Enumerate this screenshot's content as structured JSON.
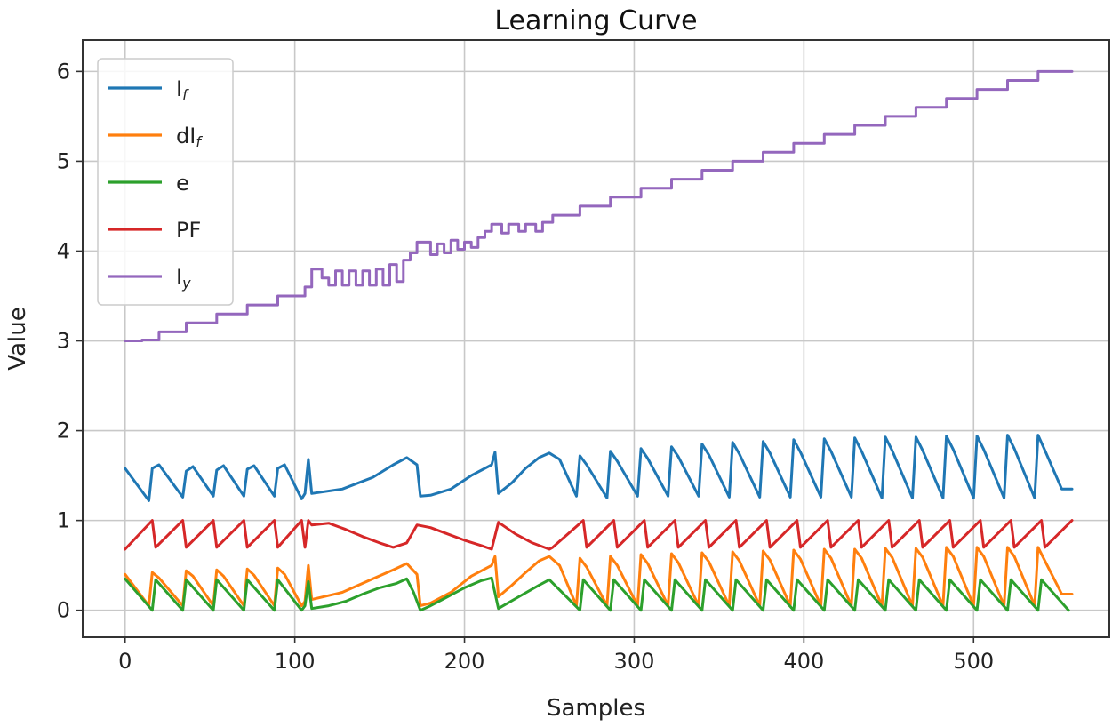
{
  "chart_data": {
    "type": "line",
    "title": "Learning Curve",
    "xlabel": "Samples",
    "ylabel": "Value",
    "xlim": [
      -25,
      580
    ],
    "ylim": [
      -0.3,
      6.35
    ],
    "xticks": [
      0,
      100,
      200,
      300,
      400,
      500
    ],
    "yticks": [
      0,
      1,
      2,
      3,
      4,
      5,
      6
    ],
    "grid": true,
    "legend": {
      "position": "top-left"
    },
    "series": [
      {
        "name": "I_f",
        "label_main": "I",
        "label_sub": "f",
        "color": "#1f77b4",
        "x": [
          0,
          14,
          16,
          20,
          34,
          36,
          40,
          52,
          54,
          58,
          70,
          72,
          76,
          88,
          90,
          94,
          104,
          106,
          108,
          110,
          128,
          146,
          158,
          166,
          172,
          174,
          180,
          192,
          204,
          216,
          218,
          220,
          228,
          236,
          244,
          250,
          256,
          266,
          268,
          272,
          284,
          286,
          290,
          302,
          304,
          308,
          320,
          322,
          326,
          338,
          340,
          344,
          356,
          358,
          362,
          374,
          376,
          380,
          392,
          394,
          398,
          410,
          412,
          416,
          428,
          430,
          434,
          446,
          448,
          452,
          464,
          466,
          470,
          482,
          484,
          488,
          500,
          502,
          506,
          518,
          520,
          524,
          536,
          538,
          542,
          552,
          558
        ],
        "y": [
          1.58,
          1.22,
          1.58,
          1.62,
          1.26,
          1.55,
          1.6,
          1.27,
          1.56,
          1.61,
          1.27,
          1.57,
          1.61,
          1.27,
          1.58,
          1.62,
          1.24,
          1.3,
          1.68,
          1.3,
          1.35,
          1.48,
          1.62,
          1.7,
          1.62,
          1.27,
          1.28,
          1.35,
          1.5,
          1.62,
          1.76,
          1.3,
          1.42,
          1.58,
          1.7,
          1.75,
          1.68,
          1.27,
          1.72,
          1.62,
          1.25,
          1.77,
          1.66,
          1.27,
          1.8,
          1.69,
          1.27,
          1.82,
          1.71,
          1.27,
          1.85,
          1.73,
          1.26,
          1.87,
          1.74,
          1.26,
          1.88,
          1.75,
          1.26,
          1.9,
          1.76,
          1.26,
          1.91,
          1.77,
          1.26,
          1.92,
          1.77,
          1.25,
          1.93,
          1.78,
          1.25,
          1.93,
          1.78,
          1.25,
          1.94,
          1.79,
          1.25,
          1.94,
          1.79,
          1.25,
          1.95,
          1.8,
          1.25,
          1.95,
          1.78,
          1.35,
          1.35
        ]
      },
      {
        "name": "dI_f",
        "label_main": "dI",
        "label_sub": "f",
        "color": "#ff7f0e",
        "x": [
          0,
          14,
          16,
          20,
          34,
          36,
          40,
          52,
          54,
          58,
          70,
          72,
          76,
          88,
          90,
          94,
          104,
          106,
          108,
          110,
          128,
          146,
          158,
          166,
          172,
          174,
          180,
          192,
          204,
          216,
          218,
          220,
          228,
          236,
          244,
          250,
          256,
          266,
          268,
          272,
          284,
          286,
          290,
          302,
          304,
          308,
          320,
          322,
          326,
          338,
          340,
          344,
          356,
          358,
          362,
          374,
          376,
          380,
          392,
          394,
          398,
          410,
          412,
          416,
          428,
          430,
          434,
          446,
          448,
          452,
          464,
          466,
          470,
          482,
          484,
          488,
          500,
          502,
          506,
          518,
          520,
          524,
          536,
          538,
          542,
          552,
          558
        ],
        "y": [
          0.4,
          0.05,
          0.42,
          0.36,
          0.05,
          0.44,
          0.38,
          0.05,
          0.45,
          0.38,
          0.05,
          0.46,
          0.39,
          0.05,
          0.47,
          0.4,
          0.05,
          0.1,
          0.5,
          0.12,
          0.2,
          0.35,
          0.45,
          0.52,
          0.4,
          0.05,
          0.08,
          0.2,
          0.38,
          0.5,
          0.6,
          0.15,
          0.28,
          0.42,
          0.55,
          0.6,
          0.5,
          0.05,
          0.58,
          0.48,
          0.05,
          0.6,
          0.5,
          0.05,
          0.62,
          0.52,
          0.05,
          0.63,
          0.53,
          0.05,
          0.64,
          0.54,
          0.05,
          0.65,
          0.55,
          0.05,
          0.66,
          0.56,
          0.05,
          0.67,
          0.57,
          0.05,
          0.68,
          0.58,
          0.05,
          0.68,
          0.58,
          0.05,
          0.69,
          0.59,
          0.05,
          0.69,
          0.59,
          0.05,
          0.7,
          0.6,
          0.05,
          0.7,
          0.6,
          0.05,
          0.7,
          0.6,
          0.05,
          0.7,
          0.55,
          0.18,
          0.18
        ]
      },
      {
        "name": "e",
        "label_main": "e",
        "label_sub": "",
        "color": "#2ca02c",
        "x": [
          0,
          16,
          18,
          34,
          36,
          52,
          54,
          70,
          72,
          88,
          90,
          104,
          106,
          108,
          110,
          120,
          130,
          140,
          150,
          160,
          166,
          170,
          174,
          180,
          190,
          200,
          210,
          216,
          220,
          232,
          244,
          250,
          268,
          270,
          286,
          288,
          304,
          306,
          322,
          324,
          340,
          342,
          358,
          360,
          376,
          378,
          394,
          396,
          412,
          414,
          430,
          432,
          448,
          450,
          466,
          468,
          484,
          486,
          502,
          504,
          520,
          522,
          538,
          540,
          556
        ],
        "y": [
          0.35,
          0.0,
          0.34,
          0.0,
          0.34,
          0.0,
          0.34,
          0.0,
          0.34,
          0.0,
          0.34,
          0.0,
          0.05,
          0.32,
          0.02,
          0.05,
          0.1,
          0.18,
          0.25,
          0.3,
          0.35,
          0.2,
          0.0,
          0.05,
          0.15,
          0.25,
          0.33,
          0.36,
          0.02,
          0.15,
          0.28,
          0.34,
          0.0,
          0.34,
          0.0,
          0.34,
          0.0,
          0.34,
          0.0,
          0.34,
          0.0,
          0.34,
          0.0,
          0.34,
          0.0,
          0.34,
          0.0,
          0.34,
          0.0,
          0.34,
          0.0,
          0.34,
          0.0,
          0.34,
          0.0,
          0.34,
          0.0,
          0.34,
          0.0,
          0.34,
          0.0,
          0.34,
          0.0,
          0.34,
          0.0
        ]
      },
      {
        "name": "PF",
        "label_main": "PF",
        "label_sub": "",
        "color": "#d62728",
        "x": [
          0,
          16,
          18,
          34,
          36,
          52,
          54,
          70,
          72,
          88,
          90,
          104,
          106,
          108,
          110,
          120,
          130,
          140,
          150,
          158,
          166,
          172,
          180,
          190,
          200,
          210,
          216,
          220,
          230,
          240,
          250,
          252,
          270,
          272,
          288,
          290,
          306,
          308,
          324,
          326,
          342,
          344,
          360,
          362,
          378,
          380,
          396,
          398,
          414,
          416,
          432,
          434,
          450,
          452,
          468,
          470,
          486,
          488,
          504,
          506,
          522,
          524,
          540,
          542,
          558
        ],
        "y": [
          0.68,
          1.0,
          0.7,
          1.0,
          0.7,
          1.0,
          0.7,
          1.0,
          0.7,
          1.0,
          0.7,
          1.0,
          0.7,
          1.0,
          0.95,
          0.97,
          0.9,
          0.82,
          0.75,
          0.7,
          0.75,
          0.95,
          0.92,
          0.85,
          0.78,
          0.72,
          0.68,
          0.98,
          0.85,
          0.75,
          0.68,
          0.7,
          1.0,
          0.7,
          1.0,
          0.7,
          1.0,
          0.7,
          1.0,
          0.7,
          1.0,
          0.7,
          1.0,
          0.7,
          1.0,
          0.7,
          1.0,
          0.7,
          1.0,
          0.7,
          1.0,
          0.7,
          1.0,
          0.7,
          1.0,
          0.7,
          1.0,
          0.7,
          1.0,
          0.7,
          1.0,
          0.7,
          1.0,
          0.7,
          1.0
        ]
      },
      {
        "name": "I_y",
        "label_main": "I",
        "label_sub": "y",
        "color": "#9467bd",
        "x": [
          0,
          10,
          10,
          20,
          20,
          36,
          36,
          54,
          54,
          72,
          72,
          90,
          90,
          106,
          106,
          110,
          110,
          116,
          116,
          120,
          120,
          124,
          124,
          128,
          128,
          132,
          132,
          136,
          136,
          140,
          140,
          144,
          144,
          148,
          148,
          152,
          152,
          156,
          156,
          160,
          160,
          164,
          164,
          168,
          168,
          172,
          172,
          180,
          180,
          184,
          184,
          188,
          188,
          192,
          192,
          196,
          196,
          200,
          200,
          204,
          204,
          208,
          208,
          212,
          212,
          216,
          216,
          222,
          222,
          226,
          226,
          232,
          232,
          236,
          236,
          242,
          242,
          246,
          246,
          252,
          252,
          268,
          268,
          286,
          286,
          304,
          304,
          322,
          322,
          340,
          340,
          358,
          358,
          376,
          376,
          394,
          394,
          412,
          412,
          430,
          430,
          448,
          448,
          466,
          466,
          484,
          484,
          502,
          502,
          520,
          520,
          538,
          538,
          558
        ],
        "y": [
          3.0,
          3.0,
          3.01,
          3.01,
          3.1,
          3.1,
          3.2,
          3.2,
          3.3,
          3.3,
          3.4,
          3.4,
          3.5,
          3.5,
          3.6,
          3.6,
          3.8,
          3.8,
          3.7,
          3.7,
          3.62,
          3.62,
          3.78,
          3.78,
          3.62,
          3.62,
          3.78,
          3.78,
          3.62,
          3.62,
          3.78,
          3.78,
          3.62,
          3.62,
          3.8,
          3.8,
          3.62,
          3.62,
          3.85,
          3.85,
          3.66,
          3.66,
          3.9,
          3.9,
          3.98,
          3.98,
          4.1,
          4.1,
          3.96,
          3.96,
          4.08,
          4.08,
          3.98,
          3.98,
          4.12,
          4.12,
          4.02,
          4.02,
          4.1,
          4.1,
          4.04,
          4.04,
          4.15,
          4.15,
          4.22,
          4.22,
          4.3,
          4.3,
          4.2,
          4.2,
          4.3,
          4.3,
          4.22,
          4.22,
          4.3,
          4.3,
          4.22,
          4.22,
          4.32,
          4.32,
          4.4,
          4.4,
          4.5,
          4.5,
          4.6,
          4.6,
          4.7,
          4.7,
          4.8,
          4.8,
          4.9,
          4.9,
          5.0,
          5.0,
          5.1,
          5.1,
          5.2,
          5.2,
          5.3,
          5.3,
          5.4,
          5.4,
          5.5,
          5.5,
          5.6,
          5.6,
          5.7,
          5.7,
          5.8,
          5.8,
          5.9,
          5.9,
          6.0,
          6.0
        ]
      }
    ]
  }
}
